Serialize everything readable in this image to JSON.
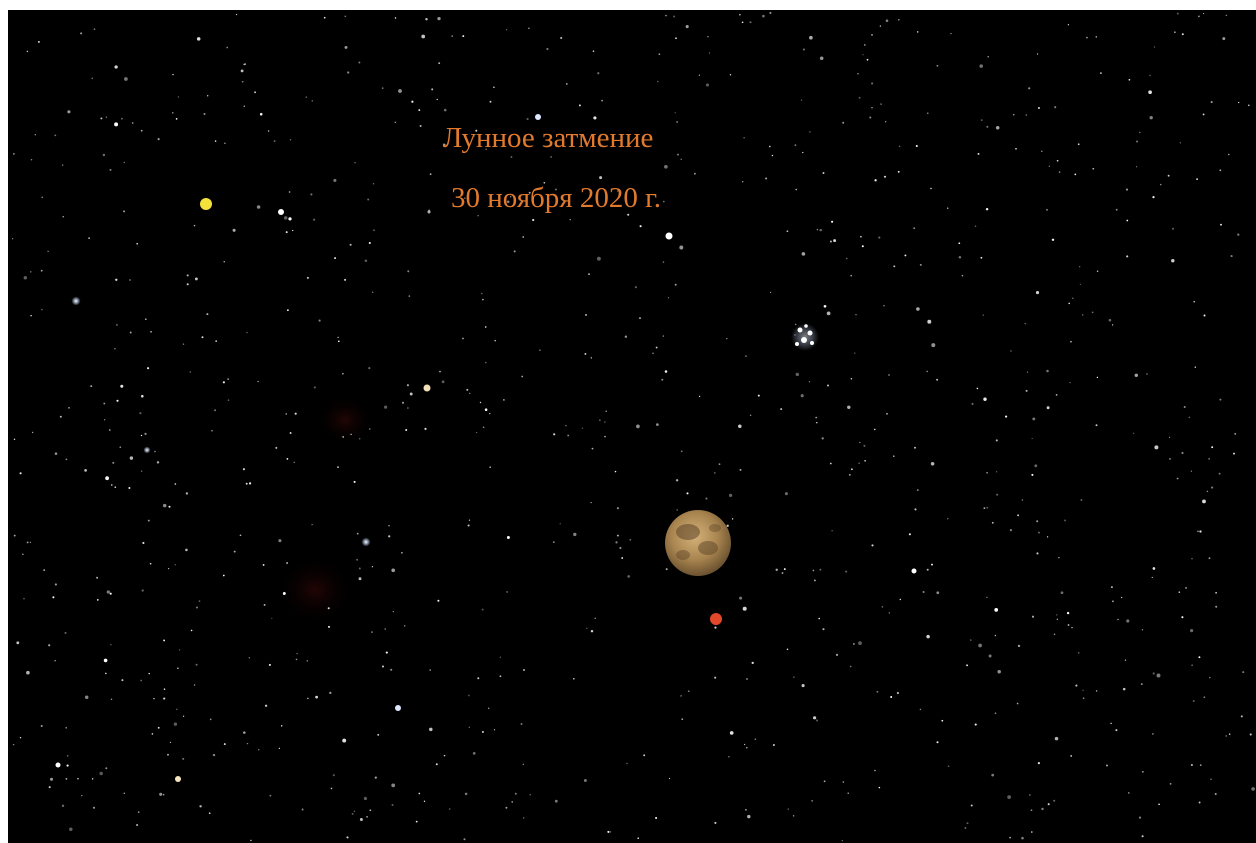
{
  "caption": {
    "line1": "Лунное затмение",
    "line2": "30 ноября 2020 г."
  }
}
